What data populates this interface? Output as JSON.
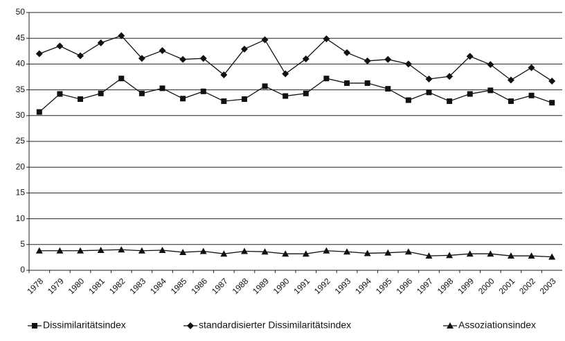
{
  "chart_data": {
    "type": "line",
    "categories": [
      "1978",
      "1979",
      "1980",
      "1981",
      "1982",
      "1983",
      "1984",
      "1985",
      "1986",
      "1987",
      "1988",
      "1989",
      "1990",
      "1991",
      "1992",
      "1993",
      "1994",
      "1995",
      "1996",
      "1997",
      "1998",
      "1999",
      "2000",
      "2001",
      "2002",
      "2003"
    ],
    "series": [
      {
        "name": "Dissimilaritätsindex",
        "color": "#111111",
        "marker": "square",
        "values": [
          30.7,
          34.2,
          33.2,
          34.3,
          37.2,
          34.3,
          35.3,
          33.3,
          34.7,
          32.8,
          33.2,
          35.7,
          33.8,
          34.3,
          37.2,
          36.3,
          36.3,
          35.2,
          33.0,
          34.5,
          32.8,
          34.2,
          34.9,
          32.8,
          33.9,
          32.5
        ]
      },
      {
        "name": "standardisierter Dissimilaritätsindex",
        "color": "#111111",
        "marker": "diamond",
        "values": [
          42.0,
          43.5,
          41.6,
          44.1,
          45.5,
          41.1,
          42.6,
          40.9,
          41.1,
          37.9,
          42.9,
          44.7,
          38.1,
          41.0,
          44.9,
          42.2,
          40.6,
          40.9,
          40.0,
          37.1,
          37.6,
          41.5,
          39.9,
          36.9,
          39.3,
          36.7
        ]
      },
      {
        "name": "Assoziationsindex",
        "color": "#111111",
        "marker": "triangle",
        "values": [
          3.8,
          3.8,
          3.8,
          3.9,
          4.0,
          3.8,
          3.9,
          3.5,
          3.7,
          3.2,
          3.7,
          3.6,
          3.2,
          3.2,
          3.8,
          3.6,
          3.3,
          3.4,
          3.6,
          2.8,
          2.9,
          3.2,
          3.2,
          2.8,
          2.8,
          2.6
        ]
      }
    ],
    "ylim": [
      0,
      50
    ],
    "yticks": [
      0,
      5,
      10,
      15,
      20,
      25,
      30,
      35,
      40,
      45,
      50
    ],
    "grid": true,
    "legend": "bottom"
  }
}
